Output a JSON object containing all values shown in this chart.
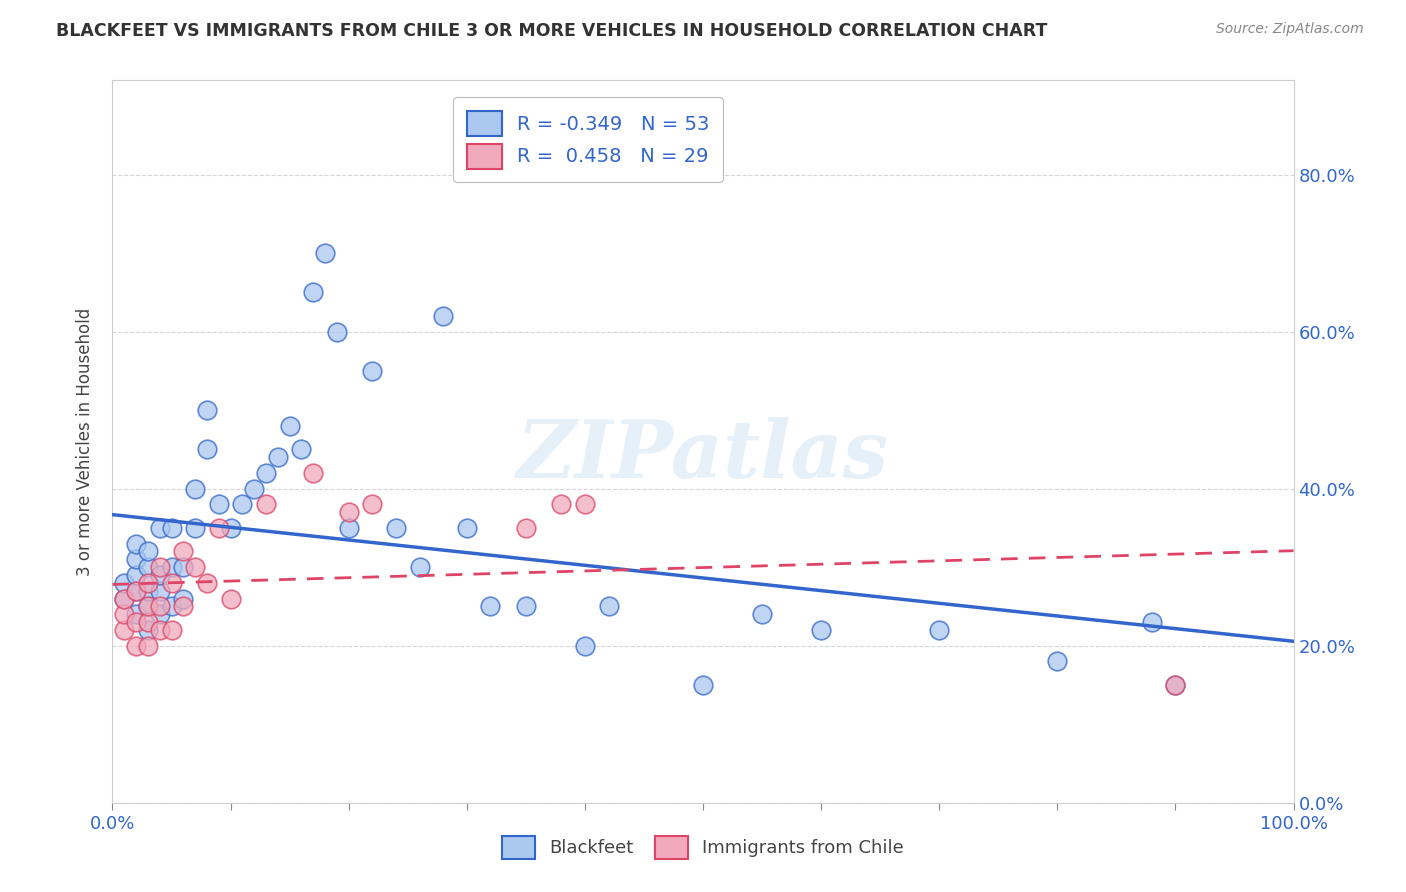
{
  "title": "BLACKFEET VS IMMIGRANTS FROM CHILE 3 OR MORE VEHICLES IN HOUSEHOLD CORRELATION CHART",
  "source": "Source: ZipAtlas.com",
  "ylabel": "3 or more Vehicles in Household",
  "legend_labels": [
    "Blackfeet",
    "Immigrants from Chile"
  ],
  "r_blackfeet": -0.349,
  "n_blackfeet": 53,
  "r_chile": 0.458,
  "n_chile": 29,
  "xlim": [
    0.0,
    1.0
  ],
  "ylim": [
    0.0,
    0.92
  ],
  "xticks": [
    0.0,
    0.1,
    0.2,
    0.3,
    0.4,
    0.5,
    0.6,
    0.7,
    0.8,
    0.9,
    1.0
  ],
  "yticks": [
    0.0,
    0.2,
    0.4,
    0.6,
    0.8
  ],
  "xtick_labels_show": [
    "0.0%",
    "100.0%"
  ],
  "ytick_labels": [
    "0.0%",
    "20.0%",
    "40.0%",
    "60.0%",
    "80.0%"
  ],
  "color_blackfeet": "#aac8f0",
  "color_chile": "#f0aabb",
  "line_color_blackfeet": "#3366cc",
  "line_color_chile": "#dd4466",
  "background_color": "#ffffff",
  "watermark_text": "ZIPatlas",
  "blackfeet_x": [
    0.01,
    0.01,
    0.02,
    0.02,
    0.02,
    0.02,
    0.02,
    0.03,
    0.03,
    0.03,
    0.03,
    0.03,
    0.04,
    0.04,
    0.04,
    0.04,
    0.05,
    0.05,
    0.05,
    0.06,
    0.06,
    0.07,
    0.07,
    0.08,
    0.08,
    0.09,
    0.1,
    0.11,
    0.12,
    0.13,
    0.14,
    0.15,
    0.16,
    0.17,
    0.18,
    0.19,
    0.2,
    0.22,
    0.24,
    0.26,
    0.28,
    0.3,
    0.32,
    0.35,
    0.4,
    0.42,
    0.5,
    0.55,
    0.6,
    0.7,
    0.8,
    0.88,
    0.9
  ],
  "blackfeet_y": [
    0.26,
    0.28,
    0.24,
    0.27,
    0.29,
    0.31,
    0.33,
    0.22,
    0.25,
    0.27,
    0.3,
    0.32,
    0.24,
    0.27,
    0.29,
    0.35,
    0.25,
    0.3,
    0.35,
    0.26,
    0.3,
    0.35,
    0.4,
    0.45,
    0.5,
    0.38,
    0.35,
    0.38,
    0.4,
    0.42,
    0.44,
    0.48,
    0.45,
    0.65,
    0.7,
    0.6,
    0.35,
    0.55,
    0.35,
    0.3,
    0.62,
    0.35,
    0.25,
    0.25,
    0.2,
    0.25,
    0.15,
    0.24,
    0.22,
    0.22,
    0.18,
    0.23,
    0.15
  ],
  "chile_x": [
    0.01,
    0.01,
    0.01,
    0.02,
    0.02,
    0.02,
    0.03,
    0.03,
    0.03,
    0.03,
    0.04,
    0.04,
    0.04,
    0.05,
    0.05,
    0.06,
    0.06,
    0.07,
    0.08,
    0.09,
    0.1,
    0.13,
    0.17,
    0.2,
    0.22,
    0.35,
    0.38,
    0.4,
    0.9
  ],
  "chile_y": [
    0.22,
    0.24,
    0.26,
    0.2,
    0.23,
    0.27,
    0.2,
    0.23,
    0.25,
    0.28,
    0.22,
    0.25,
    0.3,
    0.22,
    0.28,
    0.25,
    0.32,
    0.3,
    0.28,
    0.35,
    0.26,
    0.38,
    0.42,
    0.37,
    0.38,
    0.35,
    0.38,
    0.38,
    0.15
  ]
}
